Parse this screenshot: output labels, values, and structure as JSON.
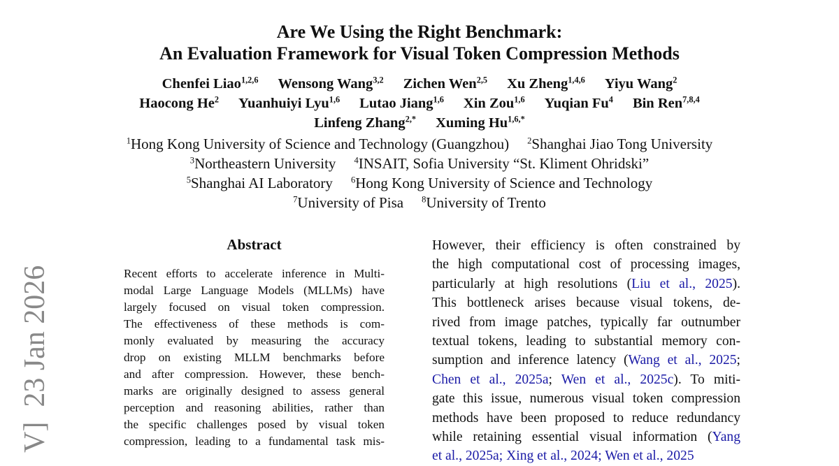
{
  "title": {
    "line1": "Are We Using the Right Benchmark:",
    "line2": "An Evaluation Framework for Visual Token Compression Methods"
  },
  "authors": [
    [
      {
        "name": "Chenfei Liao",
        "aff": "1,2,6"
      },
      {
        "name": "Wensong Wang",
        "aff": "3,2"
      },
      {
        "name": "Zichen Wen",
        "aff": "2,5"
      },
      {
        "name": "Xu Zheng",
        "aff": "1,4,6"
      },
      {
        "name": "Yiyu Wang",
        "aff": "2"
      }
    ],
    [
      {
        "name": "Haocong He",
        "aff": "2"
      },
      {
        "name": "Yuanhuiyi Lyu",
        "aff": "1,6"
      },
      {
        "name": "Lutao Jiang",
        "aff": "1,6"
      },
      {
        "name": "Xin Zou",
        "aff": "1,6"
      },
      {
        "name": "Yuqian Fu",
        "aff": "4"
      },
      {
        "name": "Bin Ren",
        "aff": "7,8,4"
      }
    ],
    [
      {
        "name": "Linfeng Zhang",
        "aff": "2,*"
      },
      {
        "name": "Xuming Hu",
        "aff": "1,6,*"
      }
    ]
  ],
  "affiliations": [
    [
      {
        "num": "1",
        "name": "Hong Kong University of Science and Technology (Guangzhou)"
      },
      {
        "num": "2",
        "name": "Shanghai Jiao Tong University"
      }
    ],
    [
      {
        "num": "3",
        "name": "Northeastern University"
      },
      {
        "num": "4",
        "name": "INSAIT, Sofia University “St. Kliment Ohridski”"
      }
    ],
    [
      {
        "num": "5",
        "name": "Shanghai AI Laboratory"
      },
      {
        "num": "6",
        "name": "Hong Kong University of Science and Technology"
      }
    ],
    [
      {
        "num": "7",
        "name": "University of Pisa"
      },
      {
        "num": "8",
        "name": "University of Trento"
      }
    ]
  ],
  "arxiv_stamp": "V]  23 Jan 2026",
  "abstract": {
    "heading": "Abstract",
    "lines": [
      "Recent efforts to accelerate inference in Multi-",
      "modal Large Language Models (MLLMs) have",
      "largely focused on visual token compression.",
      "The effectiveness of these methods is com-",
      "monly evaluated by measuring the accuracy",
      "drop on existing MLLM benchmarks before",
      "and after compression. However, these bench-",
      "marks are originally designed to assess general",
      "perception and reasoning abilities, rather than",
      "the specific challenges posed by visual token",
      "compression, leading to a fundamental task mis-"
    ]
  },
  "intro": {
    "lines": [
      [
        {
          "t": "However, their efficiency is often constrained by"
        }
      ],
      [
        {
          "t": "the high computational cost of processing images,"
        }
      ],
      [
        {
          "t": "particularly at high resolutions ("
        },
        {
          "t": "Liu et al., 2025",
          "cite": true
        },
        {
          "t": ")."
        }
      ],
      [
        {
          "t": "This bottleneck arises because visual tokens, de-"
        }
      ],
      [
        {
          "t": "rived from image patches, typically far outnumber"
        }
      ],
      [
        {
          "t": "textual tokens, leading to substantial memory con-"
        }
      ],
      [
        {
          "t": "sumption and inference latency ("
        },
        {
          "t": "Wang et al., 2025",
          "cite": true
        },
        {
          "t": ";"
        }
      ],
      [
        {
          "t": "Chen et al., 2025a",
          "cite": true
        },
        {
          "t": "; "
        },
        {
          "t": "Wen et al., 2025c",
          "cite": true
        },
        {
          "t": ").  To miti-"
        }
      ],
      [
        {
          "t": "gate this issue, numerous visual token compression"
        }
      ],
      [
        {
          "t": "methods have been proposed to reduce redundancy"
        }
      ],
      [
        {
          "t": "while retaining essential visual information ("
        },
        {
          "t": "Yang",
          "cite": true
        }
      ],
      [
        {
          "t": "et al., 2025a; Xing et al., 2024; Wen et al., 2025",
          "cite": true
        }
      ]
    ]
  },
  "colors": {
    "text": "#111111",
    "citation": "#1a1aa6",
    "stamp": "#888888"
  }
}
